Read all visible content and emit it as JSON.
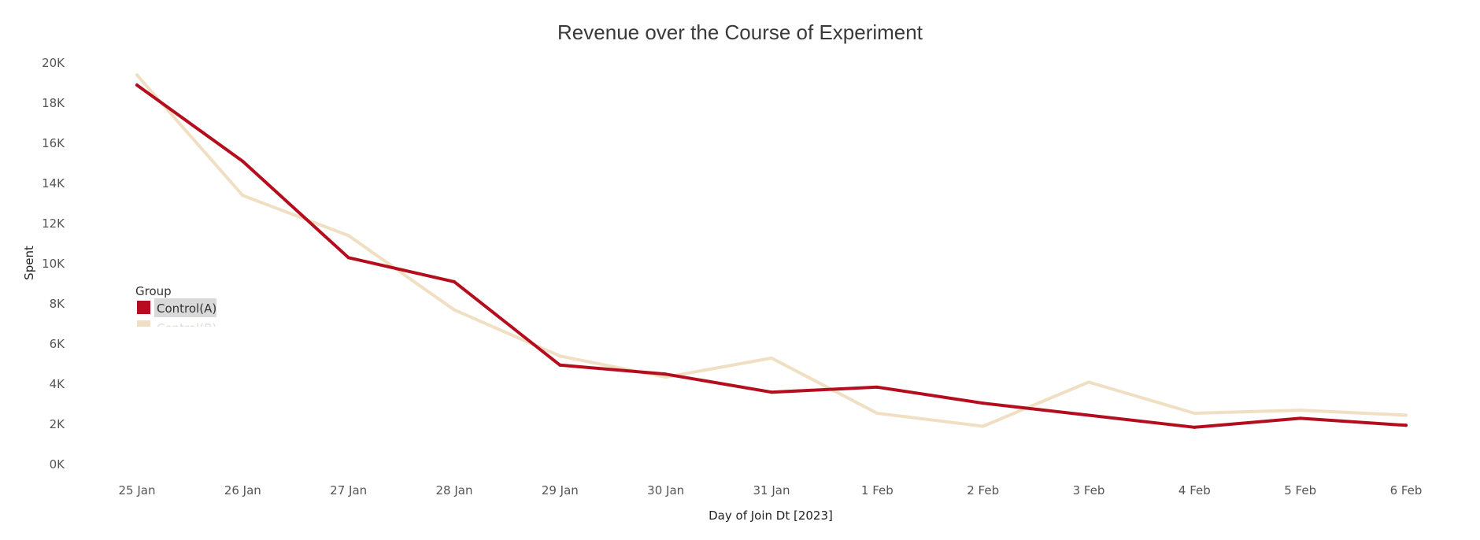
{
  "chart_data": {
    "type": "line",
    "title": "Revenue over the Course of Experiment",
    "xlabel": "Day of Join Dt [2023]",
    "ylabel": "Spent",
    "categories": [
      "25 Jan",
      "26 Jan",
      "27 Jan",
      "28 Jan",
      "29 Jan",
      "30 Jan",
      "31 Jan",
      "1 Feb",
      "2 Feb",
      "3 Feb",
      "4 Feb",
      "5 Feb",
      "6 Feb"
    ],
    "yticks": [
      "0K",
      "2K",
      "4K",
      "6K",
      "8K",
      "10K",
      "12K",
      "14K",
      "16K",
      "18K",
      "20K"
    ],
    "ylim": [
      0,
      20000
    ],
    "grid": false,
    "legend": {
      "title": "Group",
      "placement": "left",
      "entries": [
        {
          "label": "Control(A)",
          "color": "#b30d1e",
          "highlighted": true
        },
        {
          "label": "Control(B)",
          "color": "#f0dfc2",
          "highlighted": false
        }
      ]
    },
    "series": [
      {
        "name": "Control(A)",
        "color": "#b30d1e",
        "values": [
          18900,
          15100,
          10300,
          9100,
          4950,
          4500,
          3600,
          3850,
          3050,
          2450,
          1850,
          2300,
          1950
        ]
      },
      {
        "name": "Control(B)",
        "color": "#f0dfc2",
        "values": [
          19400,
          13400,
          11400,
          7700,
          5400,
          4350,
          5300,
          2550,
          1900,
          4100,
          2550,
          2700,
          2450
        ]
      }
    ]
  }
}
